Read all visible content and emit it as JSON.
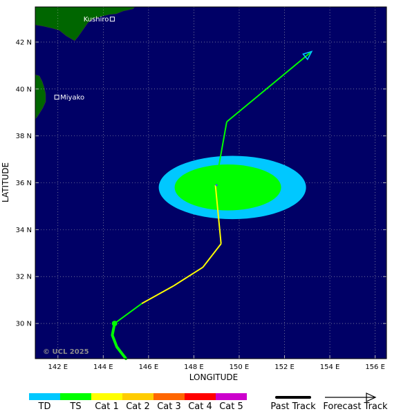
{
  "map": {
    "x_axis_label": "LONGITUDE",
    "y_axis_label": "LATITUDE",
    "copyright": "© UCL 2025",
    "lon_ticks": [
      "142 E",
      "144 E",
      "146 E",
      "148 E",
      "150 E",
      "152 E",
      "154 E",
      "156 E"
    ],
    "lat_ticks": [
      "30 N",
      "32 N",
      "34 N",
      "36 N",
      "38 N",
      "40 N",
      "42 N"
    ],
    "lon_range": [
      141,
      156.5
    ],
    "lat_range": [
      28.5,
      43.5
    ],
    "places": [
      {
        "name": "Kushiro",
        "lon": 144.4,
        "lat": 42.98
      },
      {
        "name": "Miyako",
        "lon": 141.95,
        "lat": 39.65
      }
    ],
    "storm_center": {
      "lon": 149.0,
      "lat": 35.9
    },
    "colors": {
      "ocean": "#000066",
      "land": "#006600",
      "graticule": "#b9b9b9",
      "td": "#00c8ff",
      "ts": "#00ff00",
      "cat1": "#ffff00",
      "cat2": "#ffcc00",
      "cat3": "#ff6600",
      "cat4": "#ff0000",
      "cat5": "#cc00cc"
    }
  },
  "chart_data": {
    "type": "map",
    "past_track": [
      {
        "lon": 145.0,
        "lat": 28.5,
        "category": "TS"
      },
      {
        "lon": 144.6,
        "lat": 29.0,
        "category": "TS"
      },
      {
        "lon": 144.4,
        "lat": 29.5,
        "category": "TS"
      },
      {
        "lon": 144.5,
        "lat": 30.0,
        "category": "TS"
      }
    ],
    "forecast_track": [
      {
        "lon": 144.5,
        "lat": 30.0,
        "category": "TS"
      },
      {
        "lon": 145.7,
        "lat": 30.85,
        "category": "TS"
      },
      {
        "lon": 147.1,
        "lat": 31.6,
        "category": "Cat 1"
      },
      {
        "lon": 148.4,
        "lat": 32.4,
        "category": "Cat 1"
      },
      {
        "lon": 149.2,
        "lat": 33.4,
        "category": "Cat 1"
      },
      {
        "lon": 148.95,
        "lat": 35.9,
        "category": "Cat 1"
      },
      {
        "lon": 149.45,
        "lat": 38.6,
        "category": "TS"
      },
      {
        "lon": 153.2,
        "lat": 41.6,
        "category": "TD"
      }
    ],
    "wind_radii": [
      {
        "category": "TD",
        "lon": 149.7,
        "lat": 35.8,
        "radius_lon": 3.25,
        "radius_lat": 1.35
      },
      {
        "category": "TS",
        "lon": 149.5,
        "lat": 35.8,
        "radius_lon": 2.35,
        "radius_lat": 0.98
      }
    ]
  },
  "legend": {
    "categories": [
      {
        "label": "TD",
        "color": "#00c8ff"
      },
      {
        "label": "TS",
        "color": "#00ff00"
      },
      {
        "label": "Cat 1",
        "color": "#ffff00"
      },
      {
        "label": "Cat 2",
        "color": "#ffcc00"
      },
      {
        "label": "Cat 3",
        "color": "#ff6600"
      },
      {
        "label": "Cat 4",
        "color": "#ff0000"
      },
      {
        "label": "Cat 5",
        "color": "#cc00cc"
      }
    ],
    "past_track_label": "Past Track",
    "forecast_track_label": "Forecast Track"
  }
}
